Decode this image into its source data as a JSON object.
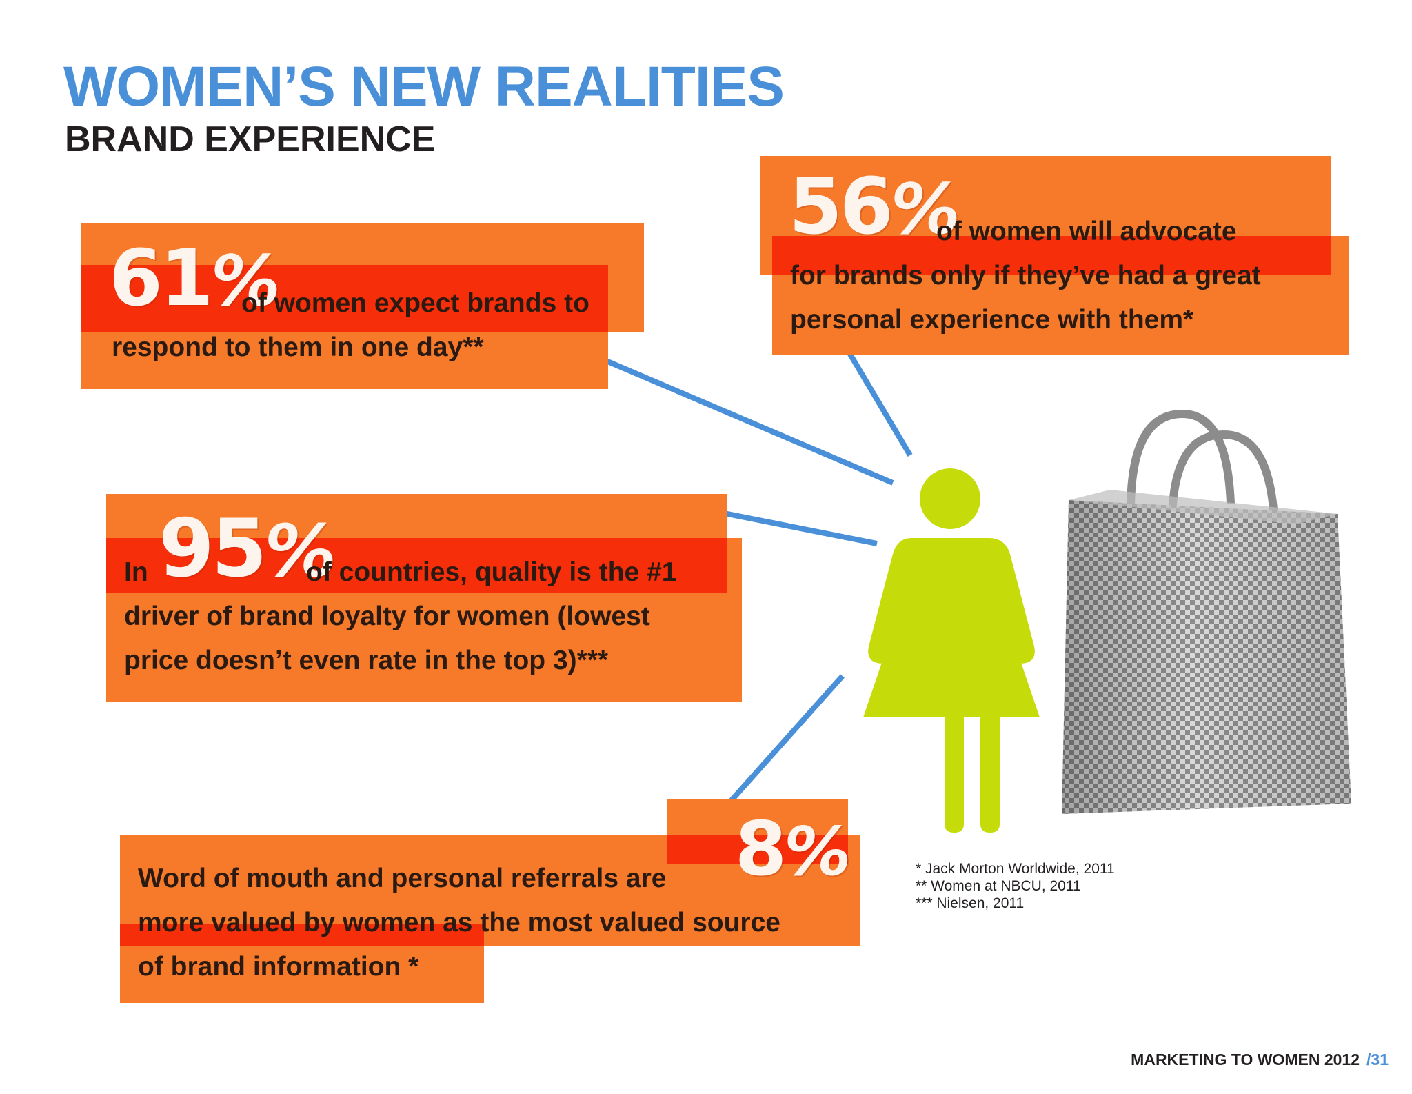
{
  "header": {
    "title": "WOMEN’S NEW REALITIES",
    "subtitle": "BRAND EXPERIENCE"
  },
  "stats": [
    {
      "id": "stat-61",
      "figure": "61",
      "lines": [
        "of women expect brands to",
        "respond to them in one day**"
      ]
    },
    {
      "id": "stat-56",
      "figure": "56",
      "lines": [
        "of women will advocate",
        "for brands only if they’ve had a great",
        "personal experience with them*"
      ]
    },
    {
      "id": "stat-95",
      "prefix": "In",
      "figure": "95",
      "lines": [
        "of countries, quality is the #1",
        "driver of brand loyalty for women (lowest",
        "price doesn’t even rate in the top 3)***"
      ]
    },
    {
      "id": "stat-8",
      "figure": "8",
      "lines": [
        "Word of mouth and personal referrals are",
        "more valued by women as the most valued source",
        "of brand information *"
      ]
    }
  ],
  "percent_symbol": "%",
  "sources": [
    "* Jack Morton Worldwide, 2011",
    "** Women at NBCU, 2011",
    "*** Nielsen, 2011"
  ],
  "footer": {
    "label": "MARKETING TO WOMEN 2012",
    "page": "/31"
  },
  "colors": {
    "title_blue": "#4a90d9",
    "box_orange": "#f7792a",
    "box_red": "#ff4513",
    "figure_green": "#c5dc0a",
    "connector_blue": "#4a90d9"
  },
  "icons": [
    "woman-figure-icon",
    "shopping-bag-icon"
  ]
}
